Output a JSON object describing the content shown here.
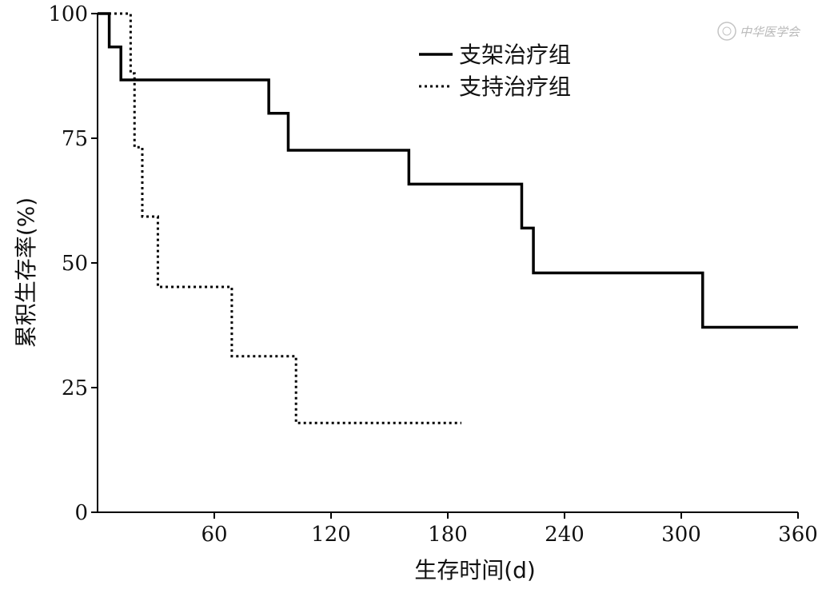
{
  "chart_data": {
    "type": "line",
    "step": true,
    "xlabel": "生存时间(d)",
    "ylabel": "累积生存率(%)",
    "xlim": [
      0,
      360
    ],
    "ylim": [
      0,
      100
    ],
    "x_ticks": [
      60,
      120,
      180,
      240,
      300,
      360
    ],
    "y_ticks": [
      0,
      25,
      50,
      75,
      100
    ],
    "grid": false,
    "legend_position": "top-right",
    "series": [
      {
        "name": "支架治疗组",
        "style": "solid",
        "color": "#000000",
        "x": [
          0,
          6,
          12,
          88,
          98,
          160,
          218,
          224,
          311,
          360
        ],
        "y": [
          100,
          93.3,
          86.7,
          80.0,
          72.6,
          65.8,
          57.0,
          48.0,
          37.1,
          37.1
        ]
      },
      {
        "name": "支持治疗组",
        "style": "dotted",
        "color": "#000000",
        "x": [
          0,
          17,
          19,
          23,
          31,
          69,
          102,
          187
        ],
        "y": [
          100,
          88.0,
          73.2,
          59.3,
          45.2,
          31.3,
          17.9,
          17.9
        ]
      }
    ]
  },
  "watermark": {
    "text": "中华医学会"
  }
}
